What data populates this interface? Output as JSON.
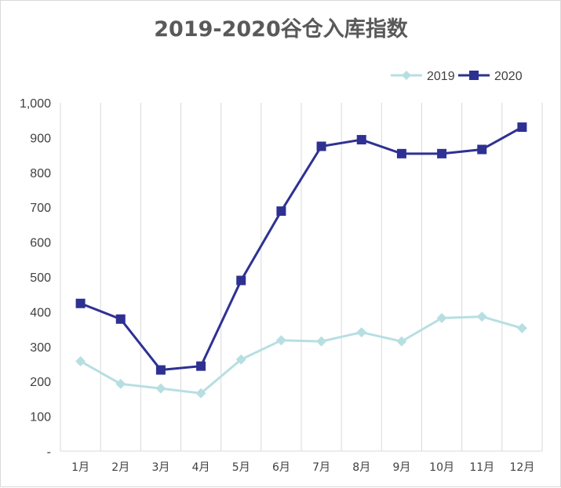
{
  "chart_data": {
    "type": "line",
    "title": "2019-2020谷仓入库指数",
    "categories": [
      "1月",
      "2月",
      "3月",
      "4月",
      "5月",
      "6月",
      "7月",
      "8月",
      "9月",
      "10月",
      "11月",
      "12月"
    ],
    "series": [
      {
        "name": "2019",
        "color": "#b7dfe2",
        "marker": "diamond",
        "values": [
          258,
          193,
          180,
          166,
          263,
          318,
          315,
          341,
          315,
          382,
          386,
          353
        ]
      },
      {
        "name": "2020",
        "color": "#2e3192",
        "marker": "square",
        "values": [
          424,
          379,
          233,
          244,
          490,
          689,
          875,
          894,
          854,
          854,
          866,
          930
        ]
      }
    ],
    "ylim": [
      0,
      1000
    ],
    "yticks": [
      0,
      100,
      200,
      300,
      400,
      500,
      600,
      700,
      800,
      900,
      1000
    ],
    "ytick_labels": [
      "-",
      "100",
      "200",
      "300",
      "400",
      "500",
      "600",
      "700",
      "800",
      "900",
      "1,000"
    ],
    "grid": "vertical",
    "legend_position": "top-right",
    "xlabel": "",
    "ylabel": ""
  }
}
